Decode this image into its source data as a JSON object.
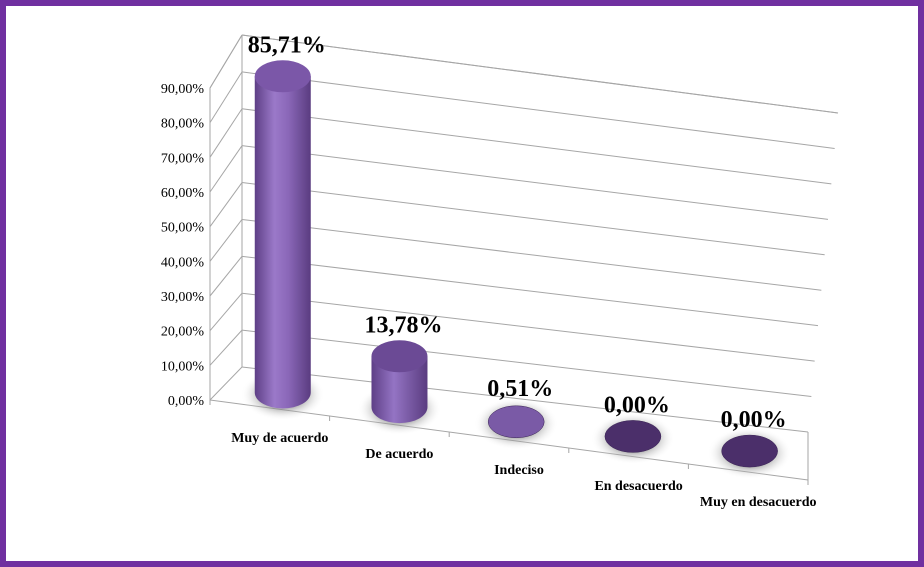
{
  "chart_data": {
    "type": "bar",
    "style": "3d-cylinder",
    "categories": [
      "Muy de acuerdo",
      "De acuerdo",
      "Indeciso",
      "En desacuerdo",
      "Muy en desacuerdo"
    ],
    "values": [
      85.71,
      13.78,
      0.51,
      0.0,
      0.0
    ],
    "data_labels": [
      "85,71%",
      "13,78%",
      "0,51%",
      "0,00%",
      "0,00%"
    ],
    "ytick_labels": [
      "0,00%",
      "10,00%",
      "20,00%",
      "30,00%",
      "40,00%",
      "50,00%",
      "60,00%",
      "70,00%",
      "80,00%",
      "90,00%"
    ],
    "ylim": [
      0,
      90
    ],
    "title": "",
    "xlabel": "",
    "ylabel": "",
    "grid": true,
    "legend": "none",
    "colors": {
      "frame": "#7030a0",
      "bar_light": "#8f6cbc",
      "bar_dark": "#4b2f6a",
      "gridline": "#a6a6a6"
    }
  }
}
